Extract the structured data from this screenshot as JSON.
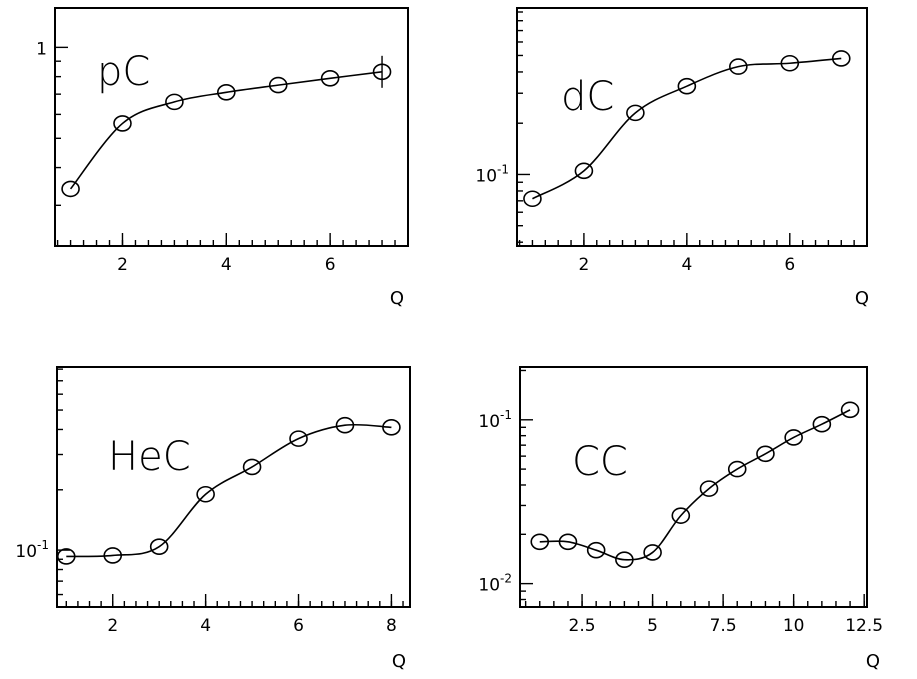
{
  "chart_data": [
    {
      "type": "line",
      "title": "pC",
      "xlabel": "Q",
      "ylabel": "",
      "yscale": "log",
      "xlim": [
        0.7,
        7.5
      ],
      "ylim": [
        0.22,
        1.35
      ],
      "xticks": [
        {
          "value": 2,
          "label": "2"
        },
        {
          "value": 4,
          "label": "4"
        },
        {
          "value": 6,
          "label": "6"
        }
      ],
      "yticks": [
        {
          "value": 1,
          "label": "1"
        }
      ],
      "series": [
        {
          "x": [
            1,
            2,
            3,
            4,
            5,
            6,
            7
          ],
          "y": [
            0.34,
            0.56,
            0.66,
            0.71,
            0.75,
            0.79,
            0.83
          ]
        }
      ]
    },
    {
      "type": "line",
      "title": "dC",
      "xlabel": "Q",
      "ylabel": "",
      "yscale": "log",
      "xlim": [
        0.7,
        7.5
      ],
      "ylim": [
        0.038,
        0.95
      ],
      "xticks": [
        {
          "value": 2,
          "label": "2"
        },
        {
          "value": 4,
          "label": "4"
        },
        {
          "value": 6,
          "label": "6"
        }
      ],
      "yticks": [
        {
          "value": 0.1,
          "label": "10-1"
        }
      ],
      "series": [
        {
          "x": [
            1,
            2,
            3,
            4,
            5,
            6,
            7
          ],
          "y": [
            0.072,
            0.105,
            0.23,
            0.33,
            0.43,
            0.45,
            0.48
          ]
        }
      ]
    },
    {
      "type": "line",
      "title": "HeC",
      "xlabel": "Q",
      "ylabel": "",
      "yscale": "log",
      "xlim": [
        0.8,
        8.4
      ],
      "ylim": [
        0.052,
        0.82
      ],
      "xticks": [
        {
          "value": 2,
          "label": "2"
        },
        {
          "value": 4,
          "label": "4"
        },
        {
          "value": 6,
          "label": "6"
        },
        {
          "value": 8,
          "label": "8"
        }
      ],
      "yticks": [
        {
          "value": 0.1,
          "label": "10-1"
        }
      ],
      "series": [
        {
          "x": [
            1,
            2,
            3,
            4,
            5,
            6,
            7,
            8
          ],
          "y": [
            0.093,
            0.094,
            0.104,
            0.19,
            0.26,
            0.36,
            0.42,
            0.41
          ]
        }
      ]
    },
    {
      "type": "line",
      "title": "CC",
      "xlabel": "Q",
      "ylabel": "",
      "yscale": "log",
      "xlim": [
        0.3,
        12.6
      ],
      "ylim": [
        0.0072,
        0.21
      ],
      "xticks": [
        {
          "value": 2.5,
          "label": "2.5"
        },
        {
          "value": 5,
          "label": "5"
        },
        {
          "value": 7.5,
          "label": "7.5"
        },
        {
          "value": 10,
          "label": "10"
        },
        {
          "value": 12.5,
          "label": "12.5"
        }
      ],
      "yticks": [
        {
          "value": 0.1,
          "label": "10-1"
        },
        {
          "value": 0.01,
          "label": "10-2"
        }
      ],
      "series": [
        {
          "x": [
            1,
            2,
            3,
            4,
            5,
            6,
            7,
            8,
            9,
            10,
            11,
            12
          ],
          "y": [
            0.018,
            0.018,
            0.016,
            0.014,
            0.0155,
            0.026,
            0.038,
            0.05,
            0.062,
            0.078,
            0.094,
            0.115
          ]
        }
      ]
    }
  ]
}
